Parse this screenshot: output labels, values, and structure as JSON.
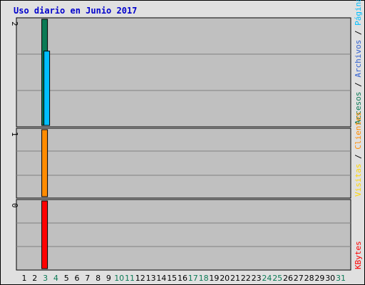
{
  "chart_data": {
    "type": "bar",
    "title": "Uso diario en Junio 2017",
    "categories": [
      "1",
      "2",
      "3",
      "4",
      "5",
      "6",
      "7",
      "8",
      "9",
      "10",
      "11",
      "12",
      "13",
      "14",
      "15",
      "16",
      "17",
      "18",
      "19",
      "20",
      "21",
      "22",
      "23",
      "24",
      "25",
      "26",
      "27",
      "28",
      "29",
      "30",
      "31"
    ],
    "weekend_days": [
      "3",
      "4",
      "10",
      "11",
      "17",
      "18",
      "24",
      "25",
      "31"
    ],
    "panels": [
      {
        "name": "top",
        "y_tick_label": "2",
        "ylim": [
          0,
          2
        ],
        "series": [
          {
            "name": "Accesos",
            "color": "#0b7a55",
            "values": [
              0,
              0,
              2,
              0,
              0,
              0,
              0,
              0,
              0,
              0,
              0,
              0,
              0,
              0,
              0,
              0,
              0,
              0,
              0,
              0,
              0,
              0,
              0,
              0,
              0,
              0,
              0,
              0,
              0,
              0,
              0
            ]
          },
          {
            "name": "Páginas",
            "color": "#00bfff",
            "values": [
              0,
              0,
              1.4,
              0,
              0,
              0,
              0,
              0,
              0,
              0,
              0,
              0,
              0,
              0,
              0,
              0,
              0,
              0,
              0,
              0,
              0,
              0,
              0,
              0,
              0,
              0,
              0,
              0,
              0,
              0,
              0
            ]
          },
          {
            "name": "Archivos",
            "color": "#3060d0",
            "values": [
              0,
              0,
              0,
              0,
              0,
              0,
              0,
              0,
              0,
              0,
              0,
              0,
              0,
              0,
              0,
              0,
              0,
              0,
              0,
              0,
              0,
              0,
              0,
              0,
              0,
              0,
              0,
              0,
              0,
              0,
              0
            ]
          }
        ]
      },
      {
        "name": "middle",
        "y_tick_label": "1",
        "ylim": [
          0,
          1
        ],
        "series": [
          {
            "name": "Visitas",
            "color": "#ffd700",
            "values": [
              0,
              0,
              0,
              0,
              0,
              0,
              0,
              0,
              0,
              0,
              0,
              0,
              0,
              0,
              0,
              0,
              0,
              0,
              0,
              0,
              0,
              0,
              0,
              0,
              0,
              0,
              0,
              0,
              0,
              0,
              0
            ]
          },
          {
            "name": "Clientes",
            "color": "#ff8c00",
            "values": [
              0,
              0,
              1,
              0,
              0,
              0,
              0,
              0,
              0,
              0,
              0,
              0,
              0,
              0,
              0,
              0,
              0,
              0,
              0,
              0,
              0,
              0,
              0,
              0,
              0,
              0,
              0,
              0,
              0,
              0,
              0
            ]
          }
        ]
      },
      {
        "name": "bottom",
        "y_tick_label": "0",
        "ylim": [
          0,
          1
        ],
        "series": [
          {
            "name": "KBytes",
            "color": "#ff0000",
            "values": [
              0,
              0,
              1,
              0,
              0,
              0,
              0,
              0,
              0,
              0,
              0,
              0,
              0,
              0,
              0,
              0,
              0,
              0,
              0,
              0,
              0,
              0,
              0,
              0,
              0,
              0,
              0,
              0,
              0,
              0,
              0
            ]
          }
        ]
      }
    ],
    "legend_placement": "right-vertical",
    "grid": true
  },
  "colors": {
    "frame_bg": "#e0e0e0",
    "plot_bg": "#c0c0c0",
    "grid": "#808080",
    "title": "#0000cc",
    "weekend_label": "#0b7a55",
    "weekday_label": "#000000",
    "separator": "#000000"
  },
  "legend": {
    "top": [
      "Accesos",
      "/",
      "Archivos",
      "/",
      "Páginas"
    ],
    "middle": [
      "Visitas",
      "/",
      "Clientes"
    ],
    "bottom": [
      "KBytes"
    ]
  }
}
